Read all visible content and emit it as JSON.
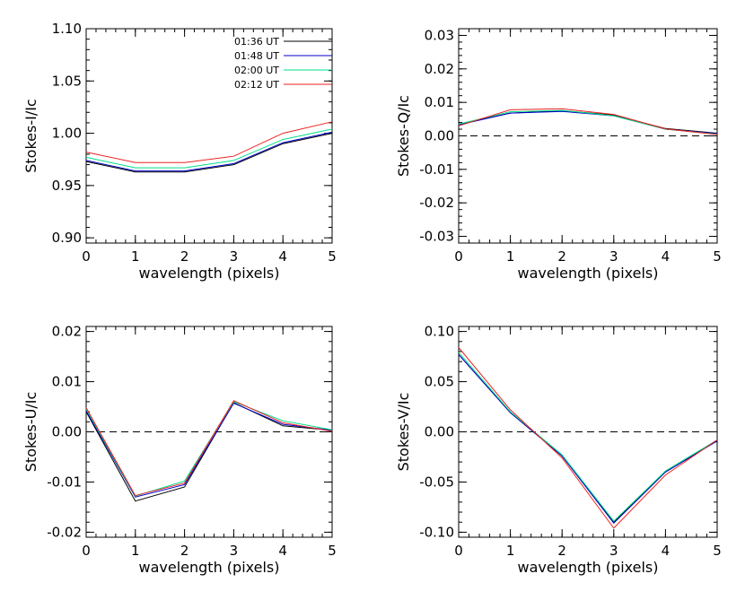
{
  "legend": {
    "entries": [
      {
        "label": "01:36 UT",
        "color": "#000000"
      },
      {
        "label": "01:48 UT",
        "color": "#0000cc"
      },
      {
        "label": "02:00 UT",
        "color": "#00dd88"
      },
      {
        "label": "02:12 UT",
        "color": "#ee2222"
      }
    ]
  },
  "chart_data": [
    {
      "type": "line",
      "title": "",
      "xlabel": "wavelength (pixels)",
      "ylabel": "Stokes-I/Ic",
      "x": [
        0,
        1,
        2,
        3,
        4,
        5
      ],
      "xlim": [
        0,
        5
      ],
      "ylim": [
        0.895,
        1.1
      ],
      "yticks": [
        0.9,
        0.95,
        1.0,
        1.05,
        1.1
      ],
      "ytick_labels": [
        "0.90",
        "0.95",
        "1.00",
        "1.05",
        "1.10"
      ],
      "xtick_labels": [
        "0",
        "1",
        "2",
        "3",
        "4",
        "5"
      ],
      "zero_line": false,
      "series": [
        {
          "name": "01:36 UT",
          "color": "#000000",
          "values": [
            0.973,
            0.963,
            0.963,
            0.97,
            0.99,
            1.0
          ]
        },
        {
          "name": "01:48 UT",
          "color": "#0000cc",
          "values": [
            0.974,
            0.964,
            0.964,
            0.971,
            0.991,
            1.001
          ]
        },
        {
          "name": "02:00 UT",
          "color": "#00dd88",
          "values": [
            0.977,
            0.967,
            0.967,
            0.974,
            0.994,
            1.004
          ]
        },
        {
          "name": "02:12 UT",
          "color": "#ee2222",
          "values": [
            0.982,
            0.972,
            0.972,
            0.978,
            1.0,
            1.011
          ]
        }
      ]
    },
    {
      "type": "line",
      "title": "",
      "xlabel": "wavelength (pixels)",
      "ylabel": "Stokes-Q/Ic",
      "x": [
        0,
        1,
        2,
        3,
        4,
        5
      ],
      "xlim": [
        0,
        5
      ],
      "ylim": [
        -0.032,
        0.032
      ],
      "yticks": [
        -0.03,
        -0.02,
        -0.01,
        0.0,
        0.01,
        0.02,
        0.03
      ],
      "ytick_labels": [
        "-0.03",
        "-0.02",
        "-0.01",
        "0.00",
        "0.01",
        "0.02",
        "0.03"
      ],
      "xtick_labels": [
        "0",
        "1",
        "2",
        "3",
        "4",
        "5"
      ],
      "zero_line": true,
      "series": [
        {
          "name": "01:36 UT",
          "color": "#000000",
          "values": [
            0.0035,
            0.0068,
            0.0075,
            0.0062,
            0.0022,
            0.0008
          ]
        },
        {
          "name": "01:48 UT",
          "color": "#0000cc",
          "values": [
            0.0033,
            0.0068,
            0.0073,
            0.006,
            0.002,
            0.0007
          ]
        },
        {
          "name": "02:00 UT",
          "color": "#00dd88",
          "values": [
            0.0035,
            0.0072,
            0.0076,
            0.006,
            0.002,
            0.0005
          ]
        },
        {
          "name": "02:12 UT",
          "color": "#ee2222",
          "values": [
            0.003,
            0.0078,
            0.0081,
            0.0064,
            0.0021,
            0.0004
          ]
        }
      ]
    },
    {
      "type": "line",
      "title": "",
      "xlabel": "wavelength (pixels)",
      "ylabel": "Stokes-U/Ic",
      "x": [
        0,
        1,
        2,
        3,
        4,
        5
      ],
      "xlim": [
        0,
        5
      ],
      "ylim": [
        -0.021,
        0.021
      ],
      "yticks": [
        -0.02,
        -0.01,
        0.0,
        0.01,
        0.02
      ],
      "ytick_labels": [
        "-0.02",
        "-0.01",
        "0.00",
        "0.01",
        "0.02"
      ],
      "xtick_labels": [
        "0",
        "1",
        "2",
        "3",
        "4",
        "5"
      ],
      "zero_line": true,
      "series": [
        {
          "name": "01:36 UT",
          "color": "#000000",
          "values": [
            0.004,
            -0.0138,
            -0.011,
            0.0058,
            0.0012,
            0.0003
          ]
        },
        {
          "name": "01:48 UT",
          "color": "#0000cc",
          "values": [
            0.0042,
            -0.013,
            -0.0105,
            0.0057,
            0.0015,
            0.0003
          ]
        },
        {
          "name": "02:00 UT",
          "color": "#00dd88",
          "values": [
            0.0045,
            -0.0128,
            -0.0098,
            0.006,
            0.0022,
            0.0004
          ]
        },
        {
          "name": "02:12 UT",
          "color": "#ee2222",
          "values": [
            0.0048,
            -0.0127,
            -0.0102,
            0.0062,
            0.0018,
            0.0001
          ]
        }
      ]
    },
    {
      "type": "line",
      "title": "",
      "xlabel": "wavelength (pixels)",
      "ylabel": "Stokes-V/Ic",
      "x": [
        0,
        1,
        2,
        3,
        4,
        5
      ],
      "xlim": [
        0,
        5
      ],
      "ylim": [
        -0.105,
        0.105
      ],
      "yticks": [
        -0.1,
        -0.05,
        0.0,
        0.05,
        0.1
      ],
      "ytick_labels": [
        "-0.10",
        "-0.05",
        "0.00",
        "0.05",
        "0.10"
      ],
      "xtick_labels": [
        "0",
        "1",
        "2",
        "3",
        "4",
        "5"
      ],
      "zero_line": true,
      "series": [
        {
          "name": "01:36 UT",
          "color": "#000000",
          "values": [
            0.077,
            0.019,
            -0.024,
            -0.09,
            -0.04,
            -0.009
          ]
        },
        {
          "name": "01:48 UT",
          "color": "#0000cc",
          "values": [
            0.077,
            0.019,
            -0.024,
            -0.091,
            -0.04,
            -0.009
          ]
        },
        {
          "name": "02:00 UT",
          "color": "#00dd88",
          "values": [
            0.079,
            0.02,
            -0.023,
            -0.089,
            -0.039,
            -0.008
          ]
        },
        {
          "name": "02:12 UT",
          "color": "#ee2222",
          "values": [
            0.084,
            0.022,
            -0.026,
            -0.096,
            -0.043,
            -0.008
          ]
        }
      ]
    }
  ]
}
